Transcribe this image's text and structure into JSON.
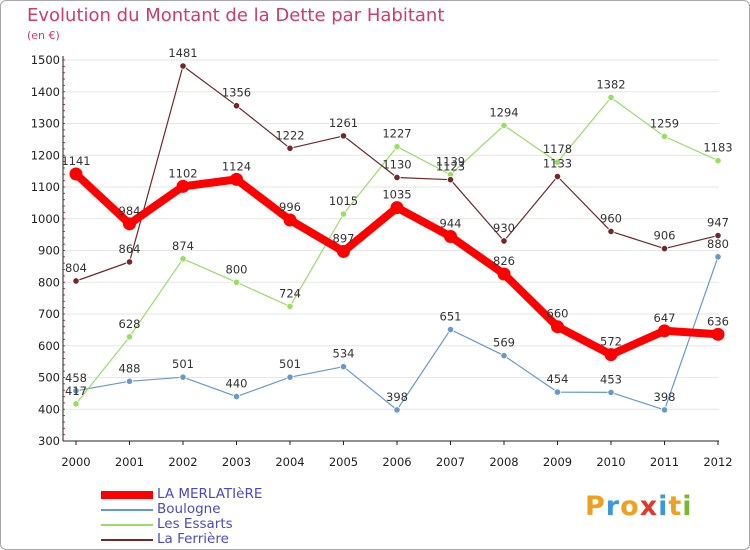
{
  "header": {
    "title": "Evolution du Montant de la Dette par Habitant",
    "subtitle": "(en €)"
  },
  "logo": {
    "text": "Proxiti",
    "letters": [
      {
        "ch": "P",
        "color": "#f0a020"
      },
      {
        "ch": "r",
        "color": "#3a9ad9"
      },
      {
        "ch": "o",
        "color": "#f0a020"
      },
      {
        "ch": "x",
        "color": "#e03a2a"
      },
      {
        "ch": "i",
        "color": "#3a9ad9"
      },
      {
        "ch": "t",
        "color": "#f0a020"
      },
      {
        "ch": "i",
        "color": "#7ab830"
      }
    ]
  },
  "colors": {
    "title": "#cc3d6b",
    "legend_text": "#4a4ac8",
    "axis": "#222222",
    "grid": "#e6e6e6"
  },
  "chart_data": {
    "type": "line",
    "title": "Evolution du Montant de la Dette par Habitant",
    "subtitle": "(en €)",
    "xlabel": "",
    "ylabel": "",
    "ylim": [
      300,
      1500
    ],
    "yticks": [
      300,
      400,
      500,
      600,
      700,
      800,
      900,
      1000,
      1100,
      1200,
      1300,
      1400,
      1500
    ],
    "grid": true,
    "legend": "bottom-left",
    "categories": [
      "2000",
      "2001",
      "2002",
      "2003",
      "2004",
      "2005",
      "2006",
      "2007",
      "2008",
      "2009",
      "2010",
      "2011",
      "2012"
    ],
    "series": [
      {
        "name": "LA MERLATIèRE",
        "color": "#ff0000",
        "values": [
          1141,
          984,
          1102,
          1124,
          996,
          897,
          1035,
          944,
          826,
          660,
          572,
          647,
          636
        ]
      },
      {
        "name": "Boulogne",
        "color": "#6699cc",
        "values": [
          458,
          488,
          501,
          440,
          501,
          534,
          398,
          651,
          569,
          454,
          453,
          398,
          880
        ]
      },
      {
        "name": "Les Essarts",
        "color": "#99dd66",
        "values": [
          417,
          628,
          874,
          800,
          724,
          1015,
          1227,
          1139,
          1294,
          1178,
          1382,
          1259,
          1183
        ]
      },
      {
        "name": "La Ferrière",
        "color": "#702828",
        "values": [
          804,
          864,
          1481,
          1356,
          1222,
          1261,
          1130,
          1123,
          930,
          1133,
          960,
          906,
          947
        ]
      }
    ]
  }
}
